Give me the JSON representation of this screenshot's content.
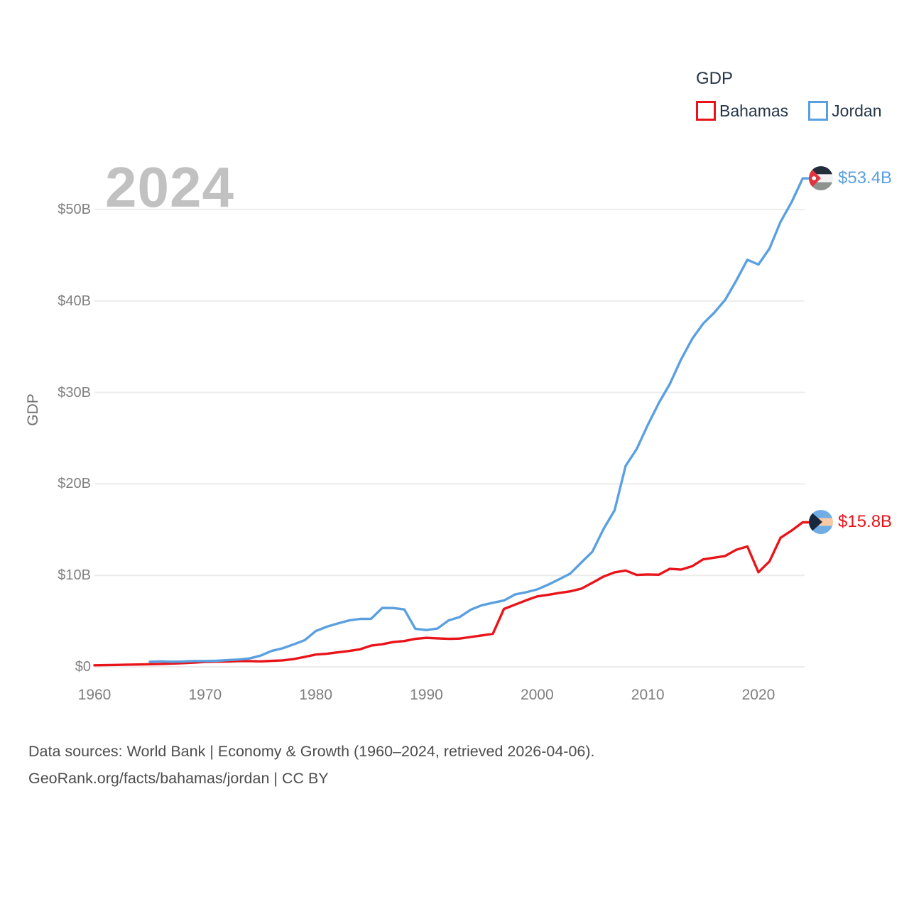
{
  "watermark": "2024",
  "legend": {
    "title": "GDP"
  },
  "chart_data": {
    "type": "line",
    "title": "GDP",
    "xlabel": "",
    "ylabel": "GDP",
    "x_range": [
      1960,
      2024
    ],
    "y_range": [
      0,
      55
    ],
    "grid": true,
    "legend_position": "top-right",
    "x_ticks": [
      "1960",
      "1970",
      "1980",
      "1990",
      "2000",
      "2010",
      "2020"
    ],
    "y_ticks": [
      {
        "value": 0,
        "label": "$0"
      },
      {
        "value": 10,
        "label": "$10B"
      },
      {
        "value": 20,
        "label": "$20B"
      },
      {
        "value": 30,
        "label": "$30B"
      },
      {
        "value": 40,
        "label": "$40B"
      },
      {
        "value": 50,
        "label": "$50B"
      }
    ],
    "unit": "billions of USD",
    "series": [
      {
        "id": "bahamas",
        "name": "Bahamas",
        "color": "#E8141A",
        "start_year": 1960,
        "end_label": "$15.8B",
        "values": [
          0.17,
          0.19,
          0.21,
          0.24,
          0.26,
          0.29,
          0.32,
          0.36,
          0.4,
          0.46,
          0.54,
          0.57,
          0.58,
          0.63,
          0.63,
          0.6,
          0.65,
          0.71,
          0.85,
          1.09,
          1.34,
          1.43,
          1.58,
          1.73,
          1.92,
          2.32,
          2.47,
          2.71,
          2.82,
          3.06,
          3.17,
          3.11,
          3.06,
          3.09,
          3.26,
          3.43,
          3.61,
          6.33,
          6.8,
          7.27,
          7.7,
          7.87,
          8.08,
          8.25,
          8.55,
          9.19,
          9.87,
          10.33,
          10.53,
          10.05,
          10.1,
          10.07,
          10.72,
          10.63,
          10.99,
          11.75,
          11.93,
          12.12,
          12.8,
          13.16,
          10.34,
          11.54,
          14.11,
          14.9,
          15.8
        ]
      },
      {
        "id": "jordan",
        "name": "Jordan",
        "color": "#5AA0E0",
        "start_year": 1965,
        "end_label": "$53.4B",
        "values": [
          0.56,
          0.6,
          0.56,
          0.58,
          0.64,
          0.64,
          0.66,
          0.73,
          0.8,
          0.92,
          1.22,
          1.73,
          2.03,
          2.45,
          2.92,
          3.91,
          4.39,
          4.74,
          5.07,
          5.24,
          5.25,
          6.44,
          6.43,
          6.27,
          4.16,
          4.02,
          4.19,
          5.08,
          5.44,
          6.24,
          6.73,
          7.0,
          7.25,
          7.91,
          8.15,
          8.46,
          8.98,
          9.58,
          10.2,
          11.41,
          12.59,
          15.06,
          17.11,
          21.97,
          23.82,
          26.43,
          28.84,
          30.94,
          33.59,
          35.83,
          37.52,
          38.7,
          40.13,
          42.23,
          44.5,
          43.98,
          45.74,
          48.65,
          50.81,
          53.4
        ]
      }
    ]
  },
  "footer": {
    "line1": "Data sources: World Bank | Economy & Growth (1960–2024, retrieved 2026-04-06).",
    "line2": "GeoRank.org/facts/bahamas/jordan | CC BY"
  }
}
